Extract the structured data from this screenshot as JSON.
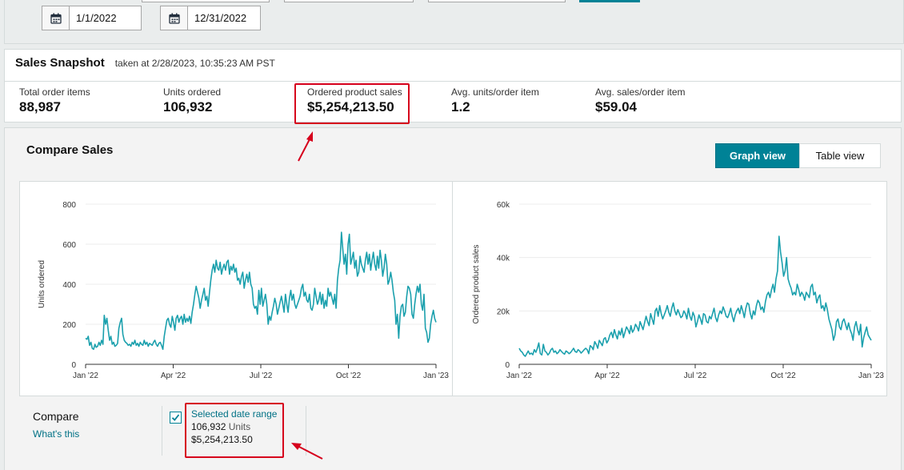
{
  "filters": {
    "start_date": "1/1/2022",
    "end_date": "12/31/2022"
  },
  "snapshot": {
    "title": "Sales Snapshot",
    "taken": "taken at 2/28/2023, 10:35:23 AM PST",
    "metrics": [
      {
        "label": "Total order items",
        "value": "88,987"
      },
      {
        "label": "Units ordered",
        "value": "106,932"
      },
      {
        "label": "Ordered product sales",
        "value": "$5,254,213.50"
      },
      {
        "label": "Avg. units/order item",
        "value": "1.2"
      },
      {
        "label": "Avg. sales/order item",
        "value": "$59.04"
      }
    ]
  },
  "compare_sales": {
    "title": "Compare Sales",
    "graph_view": "Graph view",
    "table_view": "Table view"
  },
  "compare": {
    "label": "Compare",
    "whats_this": "What's this",
    "selected_range": "Selected date range",
    "units_value": "106,932",
    "units_label": "Units",
    "sales_value": "$5,254,213.50"
  },
  "colors": {
    "line": "#1ba0ad",
    "accent": "#008296",
    "highlight": "#d6001c"
  },
  "chart_data": [
    {
      "type": "line",
      "ylabel": "Units ordered",
      "ylim": [
        0,
        800
      ],
      "yticks": [
        "0",
        "200",
        "400",
        "600",
        "800"
      ],
      "xticks": [
        "Jan '22",
        "Apr '22",
        "Jul '22",
        "Oct '22",
        "Jan '23"
      ],
      "grid": true,
      "series": [
        {
          "values": [
            130,
            125,
            140,
            95,
            110,
            80,
            75,
            100,
            85,
            90,
            110,
            95,
            120,
            100,
            245,
            200,
            230,
            170,
            120,
            140,
            100,
            110,
            90,
            95,
            105,
            180,
            210,
            230,
            150,
            120,
            110,
            105,
            95,
            100,
            90,
            110,
            100,
            120,
            95,
            105,
            90,
            110,
            100,
            95,
            120,
            100,
            110,
            90,
            105,
            100,
            95,
            110,
            120,
            100,
            90,
            105,
            110,
            95,
            75,
            140,
            180,
            220,
            230,
            200,
            185,
            240,
            210,
            170,
            230,
            245,
            210,
            230,
            240,
            200,
            250,
            210,
            230,
            215,
            240,
            205,
            260,
            300,
            350,
            390,
            360,
            330,
            280,
            320,
            350,
            380,
            320,
            340,
            290,
            360,
            420,
            470,
            500,
            460,
            520,
            480,
            470,
            510,
            450,
            480,
            500,
            470,
            510,
            520,
            450,
            490,
            470,
            500,
            460,
            480,
            420,
            430,
            400,
            440,
            460,
            380,
            420,
            450,
            410,
            460,
            400,
            380,
            300,
            280,
            290,
            250,
            370,
            300,
            380,
            290,
            320,
            350,
            300,
            200,
            240,
            220,
            260,
            290,
            330,
            300,
            250,
            280,
            310,
            340,
            300,
            260,
            350,
            300,
            260,
            330,
            370,
            320,
            350,
            300,
            280,
            300,
            320,
            340,
            380,
            400,
            340,
            360,
            320,
            310,
            350,
            280,
            270,
            300,
            380,
            340,
            300,
            320,
            360,
            300,
            350,
            280,
            320,
            290,
            380,
            340,
            360,
            330,
            300,
            350,
            280,
            420,
            480,
            520,
            660,
            580,
            500,
            550,
            450,
            600,
            650,
            500,
            530,
            560,
            480,
            520,
            440,
            460,
            540,
            500,
            480,
            460,
            520,
            560,
            500,
            550,
            470,
            520,
            560,
            500,
            470,
            540,
            480,
            570,
            520,
            440,
            480,
            550,
            500,
            400,
            420,
            460,
            420,
            360,
            320,
            200,
            250,
            130,
            240,
            290,
            300,
            240,
            260,
            340,
            390,
            380,
            350,
            250,
            230,
            300,
            350,
            390,
            360,
            400,
            300,
            270,
            350,
            180,
            160,
            110,
            130,
            200,
            240,
            270,
            230,
            210
          ]
        }
      ]
    },
    {
      "type": "line",
      "ylabel": "Ordered product sales",
      "ylim": [
        0,
        60000
      ],
      "yticks": [
        "0",
        "20k",
        "40k",
        "60k"
      ],
      "xticks": [
        "Jan '22",
        "Apr '22",
        "Jul '22",
        "Oct '22",
        "Jan '23"
      ],
      "grid": true,
      "series": [
        {
          "values": [
            6000,
            5000,
            4500,
            3500,
            3000,
            4000,
            5000,
            3800,
            4200,
            3600,
            5500,
            4500,
            6000,
            8000,
            4000,
            3500,
            7500,
            5000,
            4500,
            3500,
            4200,
            5500,
            6000,
            4500,
            5000,
            4000,
            4500,
            5500,
            4800,
            4200,
            3800,
            5000,
            4600,
            4000,
            4400,
            5200,
            6000,
            4800,
            4500,
            5500,
            5000,
            4200,
            4800,
            5500,
            6000,
            5500,
            4000,
            7000,
            6500,
            5500,
            8500,
            7500,
            6000,
            9000,
            8000,
            7000,
            9500,
            10000,
            8000,
            9000,
            11000,
            12000,
            10000,
            13000,
            11000,
            9500,
            12500,
            11000,
            13500,
            10000,
            12000,
            14000,
            13000,
            11500,
            14500,
            12000,
            13000,
            15000,
            14000,
            12500,
            16000,
            14500,
            13000,
            15500,
            18000,
            16000,
            14500,
            19000,
            17000,
            15000,
            20000,
            21000,
            18000,
            22000,
            19000,
            17000,
            18500,
            20000,
            22000,
            19500,
            18000,
            21000,
            23000,
            20000,
            18500,
            20500,
            19000,
            17500,
            18000,
            20000,
            19000,
            17000,
            21000,
            18000,
            16500,
            19500,
            18000,
            14000,
            16000,
            18500,
            17000,
            15000,
            19000,
            18500,
            16000,
            15500,
            18000,
            17000,
            19000,
            21000,
            17500,
            16000,
            18500,
            20000,
            19000,
            21500,
            20000,
            18000,
            17500,
            19000,
            21000,
            18000,
            16000,
            18500,
            20000,
            21000,
            19000,
            22000,
            20000,
            17500,
            21000,
            23000,
            22500,
            19000,
            17000,
            20000,
            18500,
            22000,
            24000,
            23000,
            20500,
            21500,
            19500,
            23500,
            26000,
            27000,
            25000,
            28000,
            30000,
            27000,
            32000,
            35000,
            48000,
            42000,
            38000,
            33000,
            35000,
            40000,
            32000,
            30000,
            28500,
            26000,
            27000,
            26000,
            30000,
            28000,
            25500,
            27000,
            26000,
            24000,
            27000,
            26000,
            25000,
            29000,
            30000,
            26000,
            27000,
            23000,
            25000,
            26000,
            21000,
            22000,
            20000,
            23000,
            20500,
            17000,
            15000,
            13000,
            9000,
            11000,
            16000,
            17000,
            14000,
            13000,
            16000,
            17000,
            15000,
            13000,
            15500,
            13000,
            11500,
            9000,
            14000,
            16000,
            13000,
            11000,
            15000,
            6500,
            10000,
            12000,
            14000,
            11000,
            10000,
            9000
          ]
        }
      ]
    }
  ]
}
